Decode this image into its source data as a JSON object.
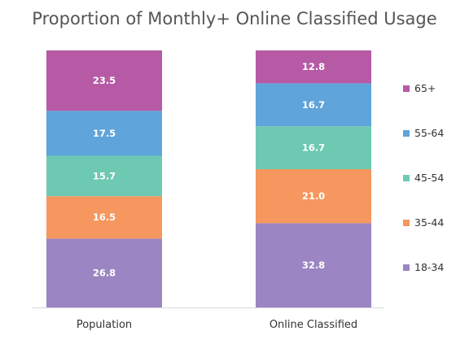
{
  "chart_data": {
    "type": "bar",
    "stacked": true,
    "title": "Proportion of Monthly+ Online Classified Usage",
    "categories": [
      "Population",
      "Online Classified"
    ],
    "series": [
      {
        "name": "18-34",
        "color": "#9b85c2",
        "values": [
          26.8,
          32.8
        ]
      },
      {
        "name": "35-44",
        "color": "#f5975e",
        "values": [
          16.5,
          21.0
        ]
      },
      {
        "name": "45-54",
        "color": "#6ec9b2",
        "values": [
          15.7,
          16.7
        ]
      },
      {
        "name": "55-64",
        "color": "#5fa4da",
        "values": [
          17.5,
          16.7
        ]
      },
      {
        "name": "65+",
        "color": "#b75aa6",
        "values": [
          23.5,
          12.8
        ]
      }
    ],
    "ylim": [
      0,
      100
    ],
    "grid": false,
    "legend_position": "right",
    "data_labels": true
  }
}
